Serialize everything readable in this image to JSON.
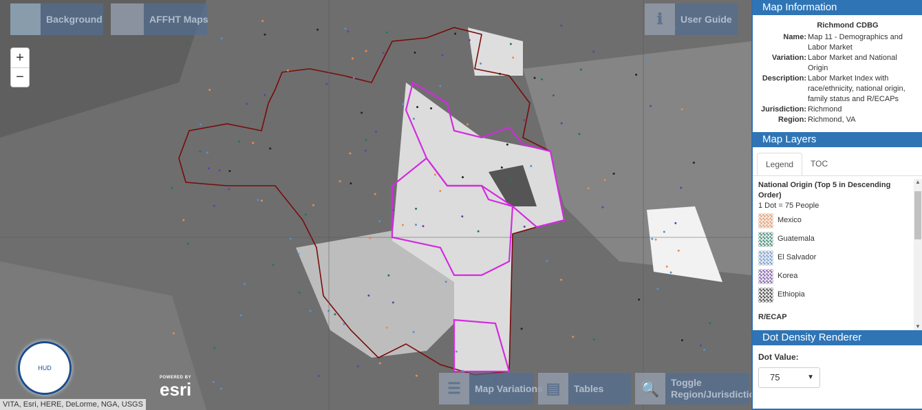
{
  "map": {
    "buttons": {
      "background": "Background",
      "affht": "AFFHT Maps",
      "guide": "User Guide",
      "variations": "Map Variations",
      "tables": "Tables",
      "toggle_line1": "Toggle",
      "toggle_line2": "Region/Jurisdiction"
    },
    "zoom_in": "+",
    "zoom_out": "−",
    "attribution": "VITA, Esri, HERE, DeLorme, NGA, USGS",
    "esri_powered": "POWERED BY",
    "esri": "esri",
    "hud_logo": "U.S. DEPARTMENT OF HOUSING AND URBAN DEVELOPMENT",
    "colors": {
      "jurisdiction": "#7a0a0a",
      "recap": "#d42ae0"
    }
  },
  "info": {
    "header": "Map Information",
    "title": "Richmond CDBG",
    "rows": [
      {
        "k": "Name:",
        "v": "Map 11 - Demographics and Labor Market"
      },
      {
        "k": "Variation:",
        "v": "Labor Market and National Origin"
      },
      {
        "k": "Description:",
        "v": "Labor Market Index with race/ethnicity, national origin, family status and R/ECAPs"
      },
      {
        "k": "Jurisdiction:",
        "v": "Richmond"
      },
      {
        "k": "Region:",
        "v": "Richmond, VA"
      }
    ]
  },
  "layers": {
    "header": "Map Layers",
    "tabs": [
      "Legend",
      "TOC"
    ],
    "legend_title": "National Origin (Top 5 in Descending Order)",
    "dot_note": "1 Dot = 75 People",
    "items": [
      {
        "label": "Mexico",
        "color": "#f08a4b"
      },
      {
        "label": "Guatemala",
        "color": "#1b7a5e"
      },
      {
        "label": "El Salvador",
        "color": "#5b8fd0"
      },
      {
        "label": "Korea",
        "color": "#6a3da8"
      },
      {
        "label": "Ethiopia",
        "color": "#222222"
      }
    ],
    "recap": "R/ECAP"
  },
  "renderer": {
    "header": "Dot Density Renderer",
    "label": "Dot Value:",
    "value": "75"
  }
}
